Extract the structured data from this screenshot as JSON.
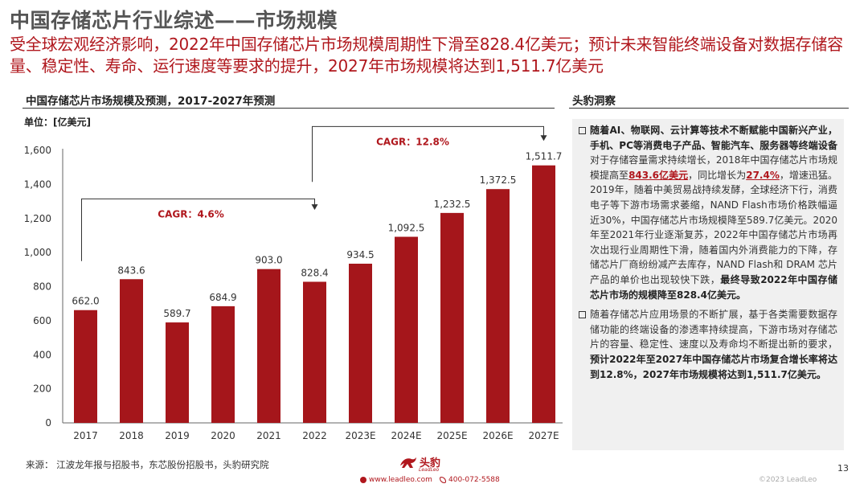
{
  "header": {
    "title": "中国存储芯片行业综述——市场规模",
    "subtitle": "受全球宏观经济影响，2022年中国存储芯片市场规模周期性下滑至828.4亿美元；预计未来智能终端设备对数据存储容量、稳定性、寿命、运行速度等要求的提升，2027年市场规模将达到1,511.7亿美元"
  },
  "chart_section": {
    "title": "中国存储芯片市场规模及预测，2017-2027年预测",
    "unit": "单位：[亿美元]"
  },
  "chart_data": {
    "type": "bar",
    "title": "中国存储芯片市场规模及预测，2017-2027年预测",
    "ylabel": "单位：[亿美元]",
    "xlabel": "",
    "categories": [
      "2017",
      "2018",
      "2019",
      "2020",
      "2021",
      "2022",
      "2023E",
      "2024E",
      "2025E",
      "2026E",
      "2027E"
    ],
    "values": [
      662.0,
      843.6,
      589.7,
      684.9,
      903.0,
      828.4,
      934.5,
      1092.5,
      1232.5,
      1372.5,
      1511.7
    ],
    "value_labels": [
      "662.0",
      "843.6",
      "589.7",
      "684.9",
      "903.0",
      "828.4",
      "934.5",
      "1,092.5",
      "1,232.5",
      "1,372.5",
      "1,511.7"
    ],
    "ylim": [
      0,
      1600
    ],
    "yticks": [
      0,
      200,
      400,
      600,
      800,
      1000,
      1200,
      1400,
      1600
    ],
    "ytick_labels": [
      "0",
      "200",
      "400",
      "600",
      "800",
      "1,000",
      "1,200",
      "1,400",
      "1,600"
    ],
    "bar_color": "#a5161b",
    "grid": false,
    "annotations": [
      {
        "label": "CAGR：4.6%",
        "from": "2017",
        "to": "2022"
      },
      {
        "label": "CAGR：12.8%",
        "from": "2022",
        "to": "2027E"
      }
    ]
  },
  "insight": {
    "title": "头豹洞察",
    "bullet1": {
      "bold_lead": "随着AI、物联网、云计算等技术不断赋能中国新兴产业，手机、PC等消费电子产品、智能汽车、服务器等终端设备",
      "text_a": "对于存储容量需求持续增长，2018年中国存储芯片市场规模提高至",
      "hl_value": "843.6亿美元",
      "text_b": "，同比增长为",
      "hl_rate": "27.4%",
      "text_c": "，增速迅猛。2019年，随着中美贸易战持续发酵，全球经济下行，消费电子等下游市场需求萎缩，NAND Flash市场价格跌幅逼近30%，中国存储芯片市场规模降至589.7亿美元。2020年至2021年行业逐渐复苏，2022年中国存储芯片市场再次出现行业周期性下滑，随着国内外消费能力的下降，存储芯片厂商纷纷减产去库存，NAND Flash和 DRAM 芯片产品的单价也出现较快下跌，",
      "bold_tail": "最终导致2022年中国存储芯片市场的规模降至828.4亿美元。"
    },
    "bullet2": {
      "text": "随着存储芯片应用场景的不断扩展，基于各类需要数据存储功能的终端设备的渗透率持续提高，下游市场对存储芯片的容量、稳定性、速度以及寿命均不断提出新的要求，",
      "bold_tail": "预计2022年至2027年中国存储芯片市场复合增长率将达到12.8%，2027年市场规模将达到1,511.7亿美元。"
    }
  },
  "footer": {
    "source": "来源：  江波龙年报与招股书，东芯股份招股书，头豹研究院",
    "brand": "头豹",
    "brand_sub": "LeadLeo",
    "website": "www.leadleo.com",
    "phone": "400-072-5588",
    "copyright": "©2023 LeadLeo",
    "page_number": "13"
  },
  "colors": {
    "accent": "#b0171d",
    "bar": "#a5161b",
    "panel_bg": "#f0f0f0"
  }
}
